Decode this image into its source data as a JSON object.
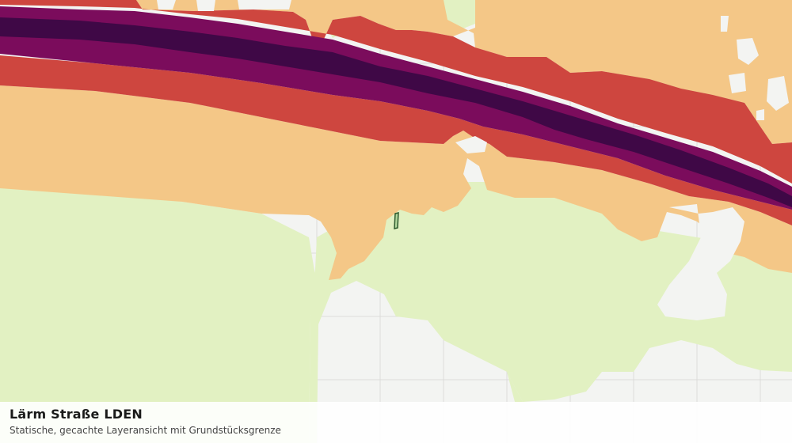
{
  "layer": {
    "title": "Lärm Straße LDEN",
    "subtitle": "Statische, gecachte Layeransicht mit Grundstücksgrenze"
  },
  "legend_colors": {
    "background": "#f3f4f2",
    "grid": "#dcdcda",
    "class_lowest": "#e2f1c2",
    "class_low": "#f4c787",
    "class_mid": "#ce463f",
    "class_high": "#7b0c5c",
    "class_highest": "#3f0846",
    "parcel_boundary": "#2d5a2d"
  }
}
